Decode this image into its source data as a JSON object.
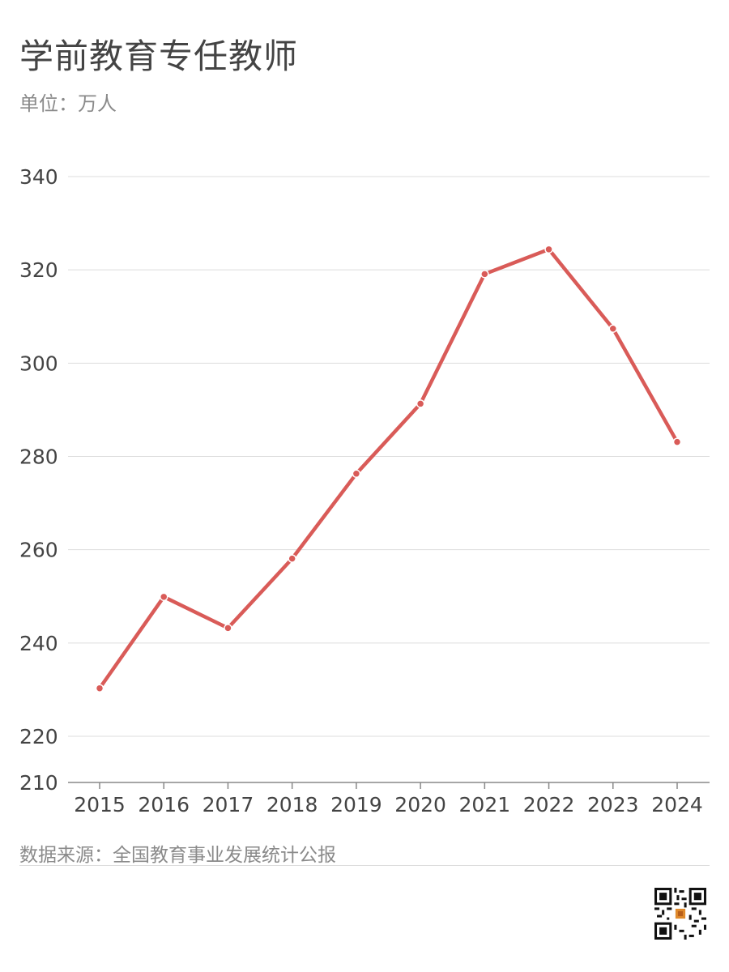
{
  "header": {
    "title": "学前教育专任教师",
    "unit": "单位：万人"
  },
  "footer": {
    "source": "数据来源：全国教育事业发展统计公报"
  },
  "colors": {
    "line": "#d95b58",
    "grid": "#dddddd",
    "axis": "#888888",
    "tick_text": "#444444"
  },
  "chart_data": {
    "type": "line",
    "x": [
      "2015",
      "2016",
      "2017",
      "2018",
      "2019",
      "2020",
      "2021",
      "2022",
      "2023",
      "2024"
    ],
    "series": [
      {
        "values": [
          230.3,
          249.9,
          243.2,
          258.1,
          276.3,
          291.3,
          319.1,
          324.4,
          307.4,
          283.1
        ]
      }
    ],
    "yticks": [
      210,
      220,
      240,
      260,
      280,
      300,
      320,
      340
    ],
    "ylim": [
      210,
      340
    ],
    "grid": true,
    "legend": "none"
  },
  "qr_icon": "qr-code-icon"
}
